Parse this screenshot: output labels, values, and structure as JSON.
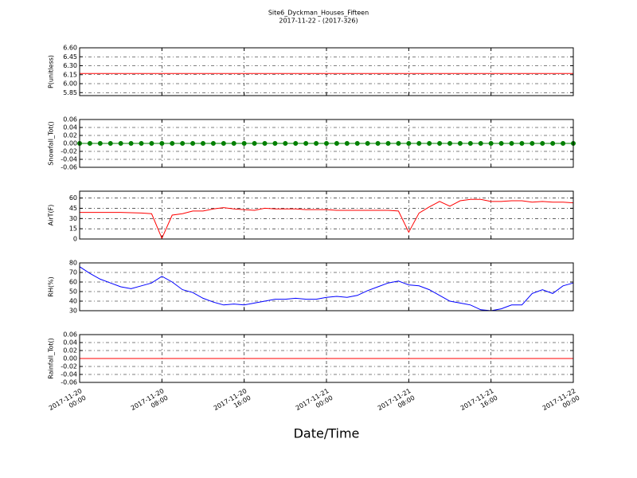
{
  "title": "Site6_Dyckman_Houses_Fifteen",
  "subtitle": "2017-11-22 - (2017-326)",
  "xlabel": "Date/Time",
  "xlim": [
    "2017-11-20 00:00",
    "2017-11-22 00:00"
  ],
  "xticks": [
    {
      "value": "2017-11-20 00:00",
      "label": "2017-11-20\n00:00"
    },
    {
      "value": "2017-11-20 08:00",
      "label": "2017-11-20\n08:00"
    },
    {
      "value": "2017-11-20 16:00",
      "label": "2017-11-20\n16:00"
    },
    {
      "value": "2017-11-21 00:00",
      "label": "2017-11-21\n00:00"
    },
    {
      "value": "2017-11-21 08:00",
      "label": "2017-11-21\n08:00"
    },
    {
      "value": "2017-11-21 16:00",
      "label": "2017-11-21\n16:00"
    },
    {
      "value": "2017-11-22 00:00",
      "label": "2017-11-22\n00:00"
    }
  ],
  "x": [
    "2017-11-20 00:00",
    "2017-11-20 01:00",
    "2017-11-20 02:00",
    "2017-11-20 03:00",
    "2017-11-20 04:00",
    "2017-11-20 05:00",
    "2017-11-20 06:00",
    "2017-11-20 07:00",
    "2017-11-20 08:00",
    "2017-11-20 09:00",
    "2017-11-20 10:00",
    "2017-11-20 11:00",
    "2017-11-20 12:00",
    "2017-11-20 13:00",
    "2017-11-20 14:00",
    "2017-11-20 15:00",
    "2017-11-20 16:00",
    "2017-11-20 17:00",
    "2017-11-20 18:00",
    "2017-11-20 19:00",
    "2017-11-20 20:00",
    "2017-11-20 21:00",
    "2017-11-20 22:00",
    "2017-11-20 23:00",
    "2017-11-21 00:00",
    "2017-11-21 01:00",
    "2017-11-21 02:00",
    "2017-11-21 03:00",
    "2017-11-21 04:00",
    "2017-11-21 05:00",
    "2017-11-21 06:00",
    "2017-11-21 07:00",
    "2017-11-21 08:00",
    "2017-11-21 09:00",
    "2017-11-21 10:00",
    "2017-11-21 11:00",
    "2017-11-21 12:00",
    "2017-11-21 13:00",
    "2017-11-21 14:00",
    "2017-11-21 15:00",
    "2017-11-21 16:00",
    "2017-11-21 17:00",
    "2017-11-21 18:00",
    "2017-11-21 19:00",
    "2017-11-21 20:00",
    "2017-11-21 21:00",
    "2017-11-21 22:00",
    "2017-11-21 23:00",
    "2017-11-22 00:00"
  ],
  "chart_data": [
    {
      "type": "line",
      "ylabel": "P(unitless)",
      "ylim": [
        5.8,
        6.6
      ],
      "grid": true,
      "yticks": [
        {
          "value": 6.6,
          "label": "6.60"
        },
        6.45,
        {
          "value": 6.3,
          "label": "6.30"
        },
        6.15,
        {
          "value": 6.0,
          "label": "6.00"
        },
        5.85
      ],
      "series": [
        {
          "color": "#ff0000",
          "values": [
            6.17,
            6.17,
            6.17,
            6.17,
            6.17,
            6.17,
            6.17,
            6.17,
            6.17,
            6.17,
            6.17,
            6.17,
            6.17,
            6.17,
            6.17,
            6.17,
            6.17,
            6.17,
            6.17,
            6.17,
            6.17,
            6.17,
            6.17,
            6.17,
            6.17,
            6.17,
            6.17,
            6.17,
            6.17,
            6.17,
            6.17,
            6.17,
            6.17,
            6.17,
            6.17,
            6.17,
            6.17,
            6.17,
            6.17,
            6.17,
            6.17,
            6.17,
            6.17,
            6.17,
            6.17,
            6.17,
            6.17,
            6.17,
            6.17
          ]
        }
      ]
    },
    {
      "type": "line",
      "ylabel": "Snowfall_Tot()",
      "ylim": [
        -0.06,
        0.06
      ],
      "grid": true,
      "marker": "o",
      "yticks": [
        0.06,
        0.04,
        0.02,
        {
          "value": 0,
          "label": "0.00"
        },
        -0.02,
        -0.04,
        -0.06
      ],
      "series": [
        {
          "color": "#008000",
          "values": [
            0,
            0,
            0,
            0,
            0,
            0,
            0,
            0,
            0,
            0,
            0,
            0,
            0,
            0,
            0,
            0,
            0,
            0,
            0,
            0,
            0,
            0,
            0,
            0,
            0,
            0,
            0,
            0,
            0,
            0,
            0,
            0,
            0,
            0,
            0,
            0,
            0,
            0,
            0,
            0,
            0,
            0,
            0,
            0,
            0,
            0,
            0,
            0,
            0
          ]
        }
      ]
    },
    {
      "type": "line",
      "ylabel": "AirT(F)",
      "ylim": [
        0,
        70
      ],
      "grid": true,
      "yticks": [
        60,
        45,
        30,
        15,
        0
      ],
      "series": [
        {
          "color": "#ff0000",
          "values": [
            39,
            39,
            39,
            39,
            39,
            38.5,
            38,
            37,
            1,
            35,
            37,
            41,
            41,
            44,
            46,
            44,
            43,
            42,
            45,
            44,
            44,
            44,
            43,
            43,
            43,
            42,
            42,
            42,
            42,
            42,
            42,
            41,
            10,
            38,
            47,
            55,
            48,
            56,
            58,
            58,
            55,
            55,
            56,
            56,
            54,
            55,
            54,
            54,
            53
          ]
        }
      ]
    },
    {
      "type": "line",
      "ylabel": "RH(%)",
      "ylim": [
        30,
        80
      ],
      "grid": true,
      "yticks": [
        80,
        70,
        60,
        50,
        40,
        30
      ],
      "series": [
        {
          "color": "#0000ff",
          "values": [
            76,
            69,
            63,
            59,
            55,
            53,
            56,
            59,
            66,
            60,
            52,
            49,
            43,
            39,
            36,
            37,
            36,
            38,
            40,
            42,
            42,
            43,
            42,
            42,
            44,
            45,
            44,
            46,
            51,
            55,
            59,
            61,
            57,
            56,
            52,
            46,
            40,
            38,
            36,
            31,
            30,
            32,
            36,
            36,
            48,
            52,
            48,
            56,
            59
          ]
        }
      ]
    },
    {
      "type": "line",
      "ylabel": "Rainfall_Tot()",
      "ylim": [
        -0.06,
        0.06
      ],
      "grid": true,
      "yticks": [
        0.06,
        0.04,
        0.02,
        {
          "value": 0,
          "label": "0.00"
        },
        -0.02,
        -0.04,
        -0.06
      ],
      "series": [
        {
          "color": "#ff0000",
          "values": [
            0,
            0,
            0,
            0,
            0,
            0,
            0,
            0,
            0,
            0,
            0,
            0,
            0,
            0,
            0,
            0,
            0,
            0,
            0,
            0,
            0,
            0,
            0,
            0,
            0,
            0,
            0,
            0,
            0,
            0,
            0,
            0,
            0,
            0,
            0,
            0,
            0,
            0,
            0,
            0,
            0,
            0,
            0,
            0,
            0,
            0,
            0,
            0,
            0
          ]
        }
      ]
    }
  ]
}
